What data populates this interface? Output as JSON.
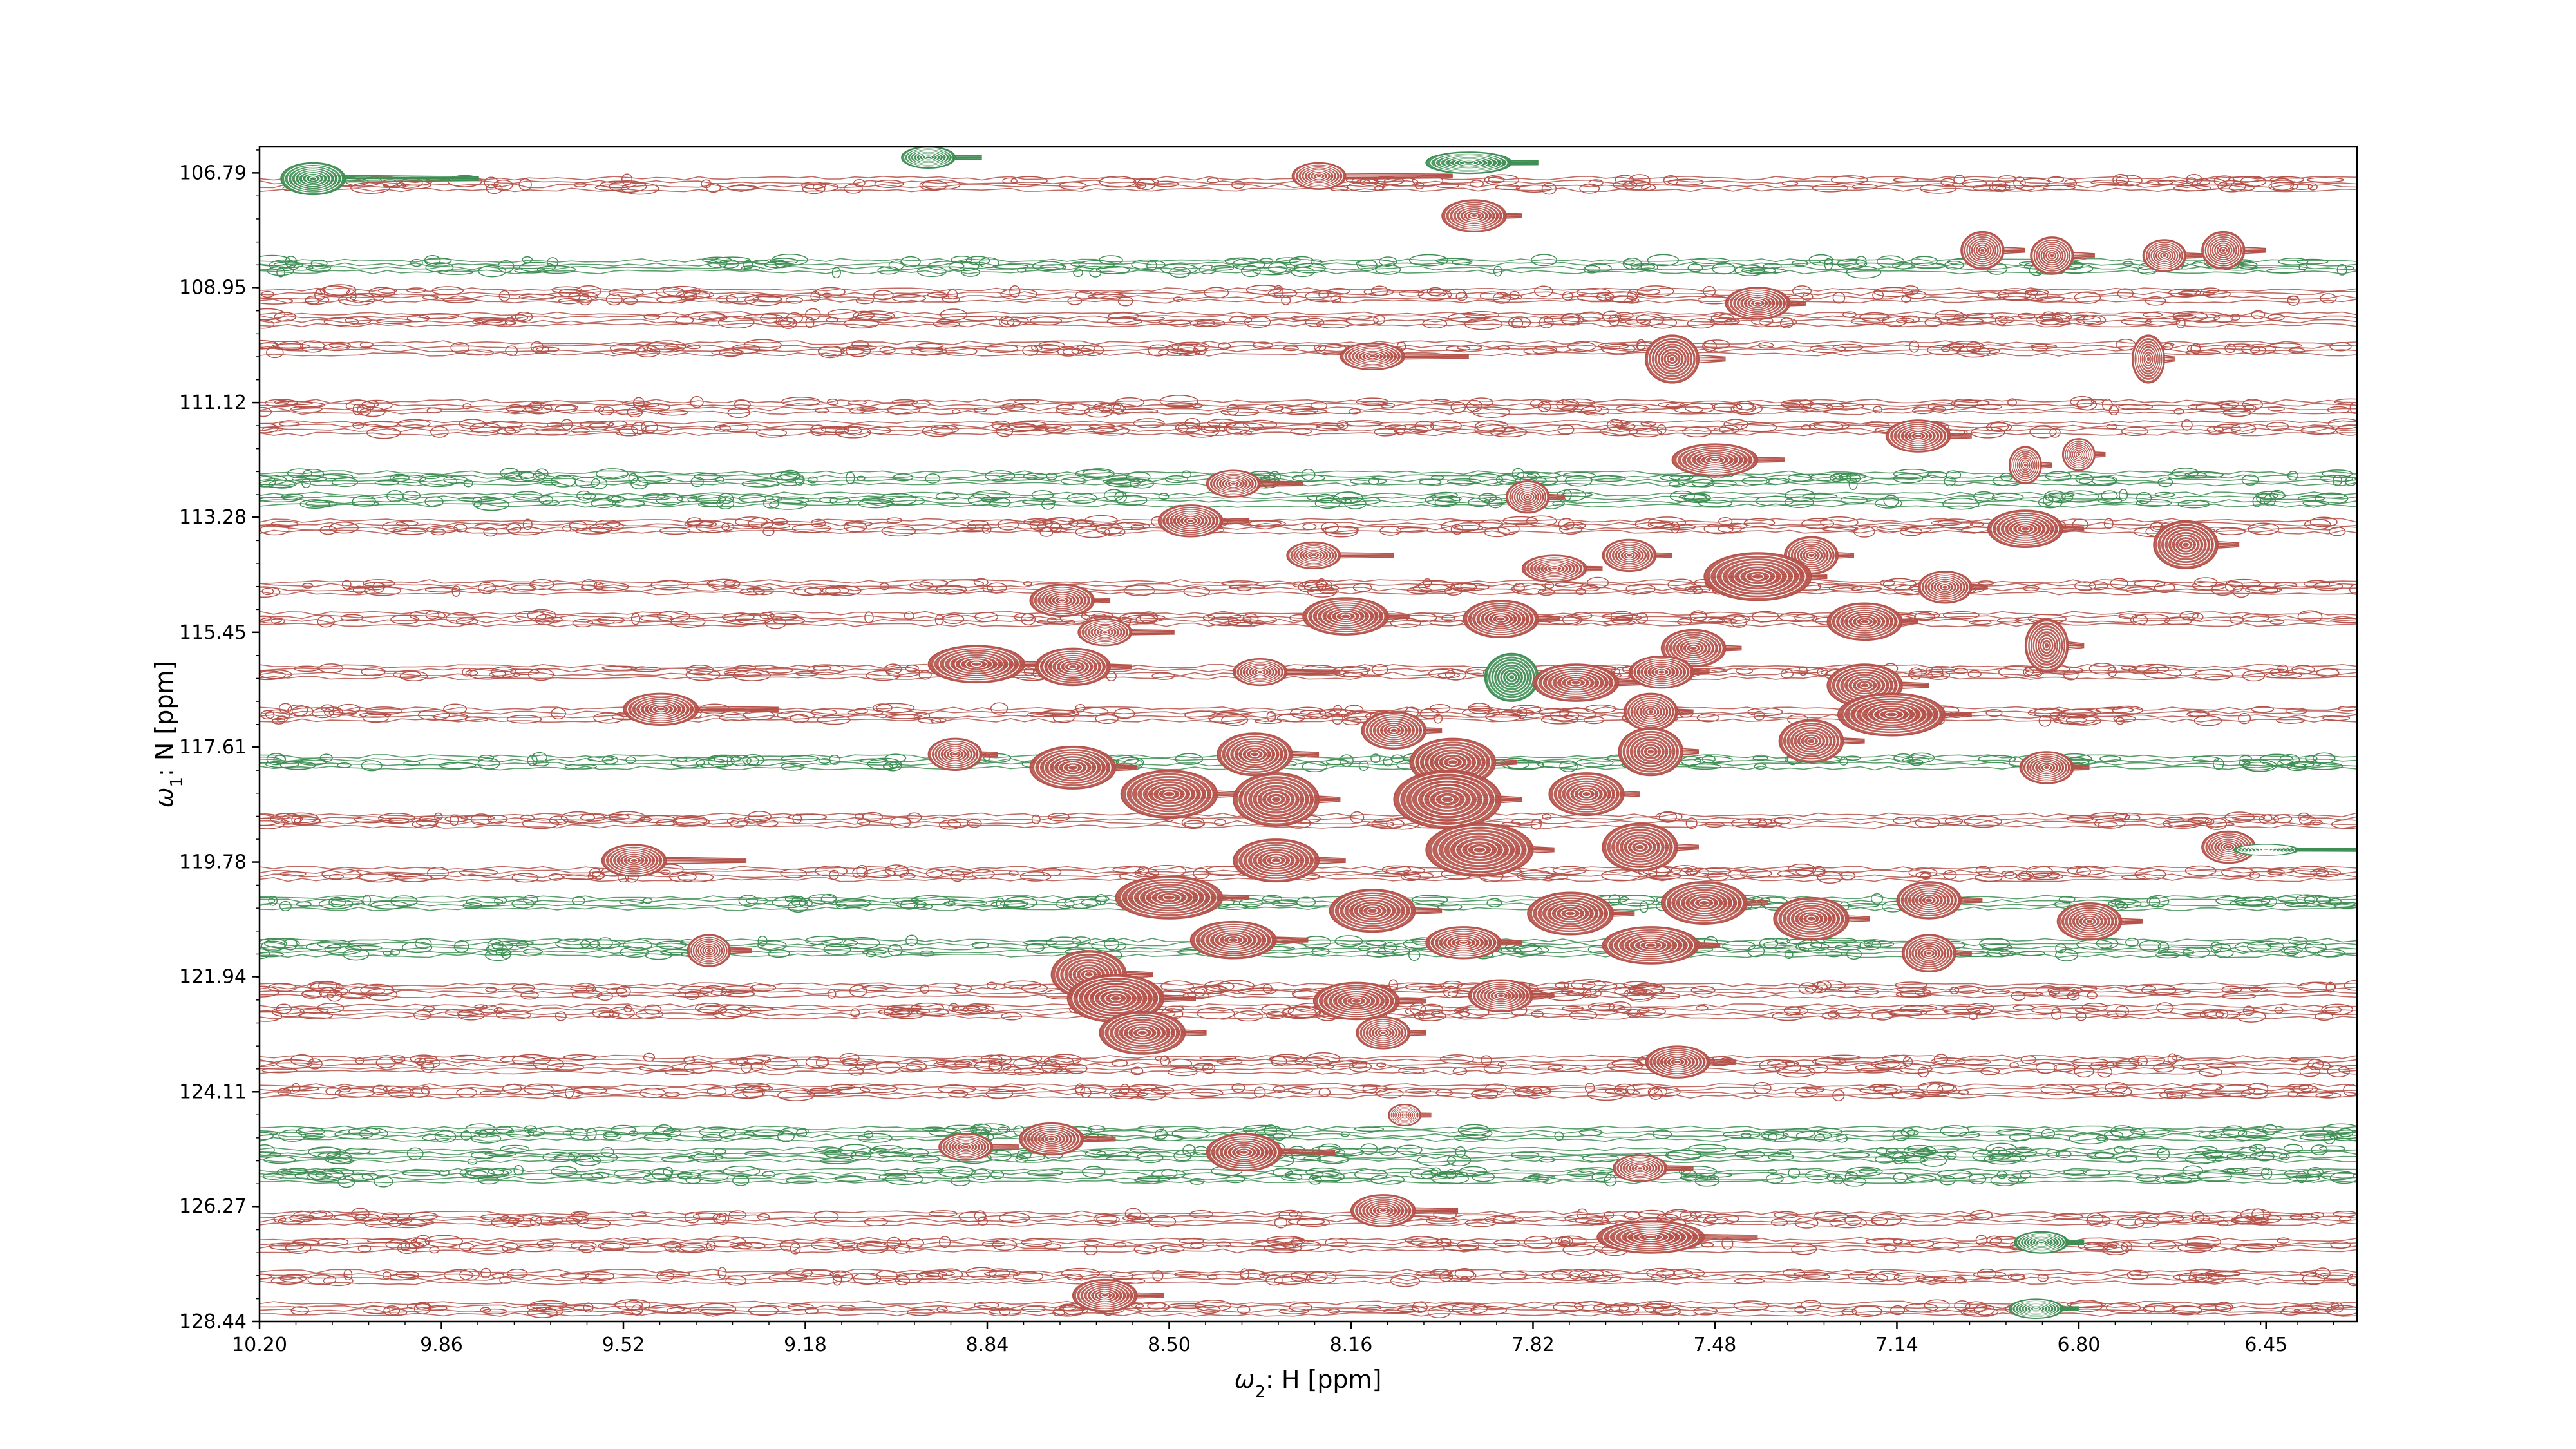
{
  "chart_data": {
    "type": "contour",
    "xlabel": "ω2: H [ppm]",
    "ylabel": "ω1: N [ppm]",
    "xlim": [
      10.2,
      6.28
    ],
    "ylim": [
      128.44,
      106.3
    ],
    "x_axis_reversed": true,
    "y_axis_reversed": true,
    "x_ticks": [
      10.2,
      9.86,
      9.52,
      9.18,
      8.84,
      8.5,
      8.16,
      7.82,
      7.48,
      7.14,
      6.8,
      6.45
    ],
    "x_tick_labels": [
      "10.20",
      "9.86",
      "9.52",
      "9.18",
      "8.84",
      "8.50",
      "8.16",
      "7.82",
      "7.48",
      "7.14",
      "6.80",
      "6.45"
    ],
    "y_ticks": [
      106.79,
      108.95,
      111.12,
      113.28,
      115.45,
      117.61,
      119.78,
      121.94,
      124.11,
      126.27,
      128.44
    ],
    "y_tick_labels": [
      "106.79",
      "108.95",
      "111.12",
      "113.28",
      "115.45",
      "117.61",
      "119.78",
      "121.94",
      "124.11",
      "126.27",
      "128.44"
    ],
    "colors": {
      "positive": "#b5524a",
      "negative": "#3f8f55"
    },
    "grid": false,
    "ridges": [
      {
        "y": 107.0,
        "x_from": 10.2,
        "x_to": 6.28,
        "sign": "positive",
        "strength": 0.6
      },
      {
        "y": 108.55,
        "x_from": 10.2,
        "x_to": 6.28,
        "sign": "negative",
        "strength": 0.8
      },
      {
        "y": 109.1,
        "x_from": 10.2,
        "x_to": 6.28,
        "sign": "positive",
        "strength": 0.7
      },
      {
        "y": 109.55,
        "x_from": 10.2,
        "x_to": 6.28,
        "sign": "positive",
        "strength": 0.6
      },
      {
        "y": 110.1,
        "x_from": 10.2,
        "x_to": 6.28,
        "sign": "positive",
        "strength": 0.5
      },
      {
        "y": 111.2,
        "x_from": 10.2,
        "x_to": 6.28,
        "sign": "positive",
        "strength": 0.7
      },
      {
        "y": 111.6,
        "x_from": 10.2,
        "x_to": 6.28,
        "sign": "positive",
        "strength": 0.6
      },
      {
        "y": 112.55,
        "x_from": 10.2,
        "x_to": 6.28,
        "sign": "negative",
        "strength": 0.7
      },
      {
        "y": 112.95,
        "x_from": 10.2,
        "x_to": 6.28,
        "sign": "negative",
        "strength": 0.6
      },
      {
        "y": 113.45,
        "x_from": 10.2,
        "x_to": 6.28,
        "sign": "positive",
        "strength": 0.7
      },
      {
        "y": 114.6,
        "x_from": 10.2,
        "x_to": 6.28,
        "sign": "positive",
        "strength": 0.6
      },
      {
        "y": 115.2,
        "x_from": 10.2,
        "x_to": 6.28,
        "sign": "positive",
        "strength": 0.5
      },
      {
        "y": 116.2,
        "x_from": 10.2,
        "x_to": 6.28,
        "sign": "positive",
        "strength": 0.5
      },
      {
        "y": 117.0,
        "x_from": 10.2,
        "x_to": 6.28,
        "sign": "positive",
        "strength": 0.8
      },
      {
        "y": 117.9,
        "x_from": 10.2,
        "x_to": 6.28,
        "sign": "negative",
        "strength": 0.6
      },
      {
        "y": 119.0,
        "x_from": 10.2,
        "x_to": 6.28,
        "sign": "positive",
        "strength": 0.5
      },
      {
        "y": 120.0,
        "x_from": 10.2,
        "x_to": 6.28,
        "sign": "positive",
        "strength": 0.5
      },
      {
        "y": 120.55,
        "x_from": 10.2,
        "x_to": 6.28,
        "sign": "negative",
        "strength": 0.5
      },
      {
        "y": 121.4,
        "x_from": 10.2,
        "x_to": 6.28,
        "sign": "negative",
        "strength": 0.9
      },
      {
        "y": 122.2,
        "x_from": 10.2,
        "x_to": 6.28,
        "sign": "positive",
        "strength": 0.7
      },
      {
        "y": 122.6,
        "x_from": 10.2,
        "x_to": 6.28,
        "sign": "positive",
        "strength": 0.6
      },
      {
        "y": 123.6,
        "x_from": 10.2,
        "x_to": 6.28,
        "sign": "positive",
        "strength": 0.9
      },
      {
        "y": 124.1,
        "x_from": 10.2,
        "x_to": 6.28,
        "sign": "positive",
        "strength": 0.5
      },
      {
        "y": 124.9,
        "x_from": 10.2,
        "x_to": 6.28,
        "sign": "negative",
        "strength": 0.6
      },
      {
        "y": 125.3,
        "x_from": 10.2,
        "x_to": 6.28,
        "sign": "negative",
        "strength": 0.8
      },
      {
        "y": 125.7,
        "x_from": 10.2,
        "x_to": 6.28,
        "sign": "negative",
        "strength": 0.7
      },
      {
        "y": 126.5,
        "x_from": 10.2,
        "x_to": 6.28,
        "sign": "positive",
        "strength": 0.6
      },
      {
        "y": 127.0,
        "x_from": 10.2,
        "x_to": 6.28,
        "sign": "positive",
        "strength": 0.6
      },
      {
        "y": 127.6,
        "x_from": 10.2,
        "x_to": 6.28,
        "sign": "positive",
        "strength": 0.5
      },
      {
        "y": 128.2,
        "x_from": 10.2,
        "x_to": 6.28,
        "sign": "positive",
        "strength": 0.5
      }
    ],
    "peaks": [
      {
        "x": 10.1,
        "y": 106.9,
        "w": 0.06,
        "h": 0.3,
        "sign": "negative",
        "tail": 0.25
      },
      {
        "x": 8.95,
        "y": 106.5,
        "w": 0.05,
        "h": 0.2,
        "sign": "negative",
        "tail": 0.05
      },
      {
        "x": 8.22,
        "y": 106.85,
        "w": 0.05,
        "h": 0.25,
        "sign": "positive",
        "tail": 0.2
      },
      {
        "x": 7.94,
        "y": 106.6,
        "w": 0.08,
        "h": 0.2,
        "sign": "negative",
        "tail": 0.05
      },
      {
        "x": 7.93,
        "y": 107.6,
        "w": 0.06,
        "h": 0.3,
        "sign": "positive",
        "tail": 0.03
      },
      {
        "x": 6.98,
        "y": 108.25,
        "w": 0.04,
        "h": 0.35,
        "sign": "positive",
        "tail": 0.04
      },
      {
        "x": 6.85,
        "y": 108.35,
        "w": 0.04,
        "h": 0.35,
        "sign": "positive",
        "tail": 0.04
      },
      {
        "x": 6.64,
        "y": 108.35,
        "w": 0.04,
        "h": 0.3,
        "sign": "positive",
        "tail": 0.03
      },
      {
        "x": 6.53,
        "y": 108.25,
        "w": 0.04,
        "h": 0.35,
        "sign": "positive",
        "tail": 0.04
      },
      {
        "x": 7.4,
        "y": 109.25,
        "w": 0.06,
        "h": 0.3,
        "sign": "positive",
        "tail": 0.03
      },
      {
        "x": 8.12,
        "y": 110.25,
        "w": 0.06,
        "h": 0.25,
        "sign": "positive",
        "tail": 0.12
      },
      {
        "x": 7.56,
        "y": 110.3,
        "w": 0.05,
        "h": 0.45,
        "sign": "positive",
        "tail": 0.05
      },
      {
        "x": 6.67,
        "y": 110.3,
        "w": 0.03,
        "h": 0.45,
        "sign": "positive",
        "tail": 0.02
      },
      {
        "x": 7.1,
        "y": 111.75,
        "w": 0.06,
        "h": 0.3,
        "sign": "positive",
        "tail": 0.04
      },
      {
        "x": 7.48,
        "y": 112.2,
        "w": 0.08,
        "h": 0.3,
        "sign": "positive",
        "tail": 0.05
      },
      {
        "x": 6.9,
        "y": 112.3,
        "w": 0.03,
        "h": 0.35,
        "sign": "positive",
        "tail": 0.02
      },
      {
        "x": 6.8,
        "y": 112.1,
        "w": 0.03,
        "h": 0.3,
        "sign": "positive",
        "tail": 0.02
      },
      {
        "x": 8.38,
        "y": 112.65,
        "w": 0.05,
        "h": 0.25,
        "sign": "positive",
        "tail": 0.08
      },
      {
        "x": 7.83,
        "y": 112.9,
        "w": 0.04,
        "h": 0.3,
        "sign": "positive",
        "tail": 0.03
      },
      {
        "x": 8.46,
        "y": 113.35,
        "w": 0.06,
        "h": 0.3,
        "sign": "positive",
        "tail": 0.05
      },
      {
        "x": 6.9,
        "y": 113.5,
        "w": 0.07,
        "h": 0.35,
        "sign": "positive",
        "tail": 0.04
      },
      {
        "x": 6.6,
        "y": 113.8,
        "w": 0.06,
        "h": 0.45,
        "sign": "positive",
        "tail": 0.04
      },
      {
        "x": 8.23,
        "y": 114.0,
        "w": 0.05,
        "h": 0.25,
        "sign": "positive",
        "tail": 0.1
      },
      {
        "x": 7.78,
        "y": 114.25,
        "w": 0.06,
        "h": 0.25,
        "sign": "positive",
        "tail": 0.03
      },
      {
        "x": 7.64,
        "y": 114.0,
        "w": 0.05,
        "h": 0.3,
        "sign": "positive",
        "tail": 0.03
      },
      {
        "x": 7.3,
        "y": 114.0,
        "w": 0.05,
        "h": 0.35,
        "sign": "positive",
        "tail": 0.03
      },
      {
        "x": 7.4,
        "y": 114.4,
        "w": 0.1,
        "h": 0.45,
        "sign": "positive",
        "tail": 0.03
      },
      {
        "x": 7.05,
        "y": 114.6,
        "w": 0.05,
        "h": 0.3,
        "sign": "positive",
        "tail": 0.03
      },
      {
        "x": 8.7,
        "y": 114.85,
        "w": 0.06,
        "h": 0.3,
        "sign": "positive",
        "tail": 0.03
      },
      {
        "x": 8.17,
        "y": 115.15,
        "w": 0.08,
        "h": 0.35,
        "sign": "positive",
        "tail": 0.04
      },
      {
        "x": 7.88,
        "y": 115.2,
        "w": 0.07,
        "h": 0.35,
        "sign": "positive",
        "tail": 0.04
      },
      {
        "x": 7.2,
        "y": 115.25,
        "w": 0.07,
        "h": 0.35,
        "sign": "positive",
        "tail": 0.03
      },
      {
        "x": 8.62,
        "y": 115.45,
        "w": 0.05,
        "h": 0.25,
        "sign": "positive",
        "tail": 0.08
      },
      {
        "x": 6.86,
        "y": 115.7,
        "w": 0.04,
        "h": 0.5,
        "sign": "positive",
        "tail": 0.03
      },
      {
        "x": 7.52,
        "y": 115.75,
        "w": 0.06,
        "h": 0.35,
        "sign": "positive",
        "tail": 0.03
      },
      {
        "x": 8.86,
        "y": 116.05,
        "w": 0.09,
        "h": 0.35,
        "sign": "positive",
        "tail": 0.05
      },
      {
        "x": 8.68,
        "y": 116.1,
        "w": 0.07,
        "h": 0.35,
        "sign": "positive",
        "tail": 0.04
      },
      {
        "x": 8.33,
        "y": 116.2,
        "w": 0.05,
        "h": 0.25,
        "sign": "positive",
        "tail": 0.1
      },
      {
        "x": 7.86,
        "y": 116.3,
        "w": 0.05,
        "h": 0.45,
        "sign": "negative",
        "tail": 0.02
      },
      {
        "x": 7.74,
        "y": 116.4,
        "w": 0.08,
        "h": 0.35,
        "sign": "positive",
        "tail": 0.05
      },
      {
        "x": 7.58,
        "y": 116.2,
        "w": 0.06,
        "h": 0.3,
        "sign": "positive",
        "tail": 0.03
      },
      {
        "x": 7.2,
        "y": 116.45,
        "w": 0.07,
        "h": 0.4,
        "sign": "positive",
        "tail": 0.05
      },
      {
        "x": 9.45,
        "y": 116.9,
        "w": 0.07,
        "h": 0.3,
        "sign": "positive",
        "tail": 0.15
      },
      {
        "x": 7.15,
        "y": 117.0,
        "w": 0.1,
        "h": 0.4,
        "sign": "positive",
        "tail": 0.05
      },
      {
        "x": 7.6,
        "y": 116.95,
        "w": 0.05,
        "h": 0.35,
        "sign": "positive",
        "tail": 0.03
      },
      {
        "x": 8.08,
        "y": 117.3,
        "w": 0.06,
        "h": 0.35,
        "sign": "positive",
        "tail": 0.03
      },
      {
        "x": 7.3,
        "y": 117.5,
        "w": 0.06,
        "h": 0.4,
        "sign": "positive",
        "tail": 0.04
      },
      {
        "x": 8.9,
        "y": 117.75,
        "w": 0.05,
        "h": 0.3,
        "sign": "positive",
        "tail": 0.03
      },
      {
        "x": 8.68,
        "y": 118.0,
        "w": 0.08,
        "h": 0.4,
        "sign": "positive",
        "tail": 0.04
      },
      {
        "x": 8.34,
        "y": 117.75,
        "w": 0.07,
        "h": 0.4,
        "sign": "positive",
        "tail": 0.05
      },
      {
        "x": 7.97,
        "y": 117.9,
        "w": 0.08,
        "h": 0.45,
        "sign": "positive",
        "tail": 0.04
      },
      {
        "x": 7.6,
        "y": 117.7,
        "w": 0.06,
        "h": 0.45,
        "sign": "positive",
        "tail": 0.03
      },
      {
        "x": 6.86,
        "y": 118.0,
        "w": 0.05,
        "h": 0.3,
        "sign": "positive",
        "tail": 0.03
      },
      {
        "x": 8.5,
        "y": 118.5,
        "w": 0.09,
        "h": 0.45,
        "sign": "positive",
        "tail": 0.05
      },
      {
        "x": 8.3,
        "y": 118.6,
        "w": 0.08,
        "h": 0.5,
        "sign": "positive",
        "tail": 0.04
      },
      {
        "x": 7.98,
        "y": 118.6,
        "w": 0.1,
        "h": 0.55,
        "sign": "positive",
        "tail": 0.04
      },
      {
        "x": 7.72,
        "y": 118.5,
        "w": 0.07,
        "h": 0.4,
        "sign": "positive",
        "tail": 0.03
      },
      {
        "x": 9.5,
        "y": 119.75,
        "w": 0.06,
        "h": 0.3,
        "sign": "positive",
        "tail": 0.15
      },
      {
        "x": 8.3,
        "y": 119.75,
        "w": 0.08,
        "h": 0.4,
        "sign": "positive",
        "tail": 0.05
      },
      {
        "x": 7.92,
        "y": 119.55,
        "w": 0.1,
        "h": 0.5,
        "sign": "positive",
        "tail": 0.04
      },
      {
        "x": 7.62,
        "y": 119.5,
        "w": 0.07,
        "h": 0.45,
        "sign": "positive",
        "tail": 0.04
      },
      {
        "x": 6.52,
        "y": 119.5,
        "w": 0.05,
        "h": 0.3,
        "sign": "positive",
        "tail": 0.04
      },
      {
        "x": 6.45,
        "y": 119.55,
        "w": 0.06,
        "h": 0.1,
        "sign": "negative",
        "tail": 0.2
      },
      {
        "x": 8.5,
        "y": 120.45,
        "w": 0.1,
        "h": 0.4,
        "sign": "positive",
        "tail": 0.05
      },
      {
        "x": 8.12,
        "y": 120.7,
        "w": 0.08,
        "h": 0.4,
        "sign": "positive",
        "tail": 0.05
      },
      {
        "x": 7.75,
        "y": 120.75,
        "w": 0.08,
        "h": 0.4,
        "sign": "positive",
        "tail": 0.04
      },
      {
        "x": 7.5,
        "y": 120.55,
        "w": 0.08,
        "h": 0.4,
        "sign": "positive",
        "tail": 0.04
      },
      {
        "x": 7.3,
        "y": 120.85,
        "w": 0.07,
        "h": 0.4,
        "sign": "positive",
        "tail": 0.04
      },
      {
        "x": 7.08,
        "y": 120.5,
        "w": 0.06,
        "h": 0.35,
        "sign": "positive",
        "tail": 0.04
      },
      {
        "x": 6.78,
        "y": 120.9,
        "w": 0.06,
        "h": 0.35,
        "sign": "positive",
        "tail": 0.04
      },
      {
        "x": 8.38,
        "y": 121.25,
        "w": 0.08,
        "h": 0.35,
        "sign": "positive",
        "tail": 0.06
      },
      {
        "x": 7.95,
        "y": 121.3,
        "w": 0.07,
        "h": 0.3,
        "sign": "positive",
        "tail": 0.04
      },
      {
        "x": 7.6,
        "y": 121.35,
        "w": 0.09,
        "h": 0.35,
        "sign": "positive",
        "tail": 0.04
      },
      {
        "x": 9.36,
        "y": 121.45,
        "w": 0.04,
        "h": 0.3,
        "sign": "positive",
        "tail": 0.04
      },
      {
        "x": 7.08,
        "y": 121.5,
        "w": 0.05,
        "h": 0.35,
        "sign": "positive",
        "tail": 0.03
      },
      {
        "x": 8.65,
        "y": 121.9,
        "w": 0.07,
        "h": 0.45,
        "sign": "positive",
        "tail": 0.05
      },
      {
        "x": 8.6,
        "y": 122.35,
        "w": 0.09,
        "h": 0.45,
        "sign": "positive",
        "tail": 0.06
      },
      {
        "x": 8.15,
        "y": 122.4,
        "w": 0.08,
        "h": 0.35,
        "sign": "positive",
        "tail": 0.05
      },
      {
        "x": 7.88,
        "y": 122.3,
        "w": 0.06,
        "h": 0.3,
        "sign": "positive",
        "tail": 0.04
      },
      {
        "x": 8.55,
        "y": 123.0,
        "w": 0.08,
        "h": 0.4,
        "sign": "positive",
        "tail": 0.04
      },
      {
        "x": 8.1,
        "y": 123.0,
        "w": 0.05,
        "h": 0.3,
        "sign": "positive",
        "tail": 0.03
      },
      {
        "x": 7.55,
        "y": 123.55,
        "w": 0.06,
        "h": 0.3,
        "sign": "positive",
        "tail": 0.05
      },
      {
        "x": 8.06,
        "y": 124.55,
        "w": 0.03,
        "h": 0.2,
        "sign": "positive",
        "tail": 0.02
      },
      {
        "x": 8.88,
        "y": 125.15,
        "w": 0.05,
        "h": 0.25,
        "sign": "positive",
        "tail": 0.05
      },
      {
        "x": 8.72,
        "y": 125.0,
        "w": 0.06,
        "h": 0.3,
        "sign": "positive",
        "tail": 0.06
      },
      {
        "x": 8.36,
        "y": 125.25,
        "w": 0.07,
        "h": 0.35,
        "sign": "positive",
        "tail": 0.1
      },
      {
        "x": 7.62,
        "y": 125.55,
        "w": 0.05,
        "h": 0.25,
        "sign": "positive",
        "tail": 0.05
      },
      {
        "x": 8.1,
        "y": 126.35,
        "w": 0.06,
        "h": 0.3,
        "sign": "positive",
        "tail": 0.08
      },
      {
        "x": 7.6,
        "y": 126.85,
        "w": 0.1,
        "h": 0.3,
        "sign": "positive",
        "tail": 0.1
      },
      {
        "x": 6.87,
        "y": 126.95,
        "w": 0.05,
        "h": 0.2,
        "sign": "negative",
        "tail": 0.03
      },
      {
        "x": 8.62,
        "y": 127.95,
        "w": 0.06,
        "h": 0.3,
        "sign": "positive",
        "tail": 0.05
      },
      {
        "x": 6.88,
        "y": 128.2,
        "w": 0.05,
        "h": 0.18,
        "sign": "negative",
        "tail": 0.03
      }
    ]
  }
}
